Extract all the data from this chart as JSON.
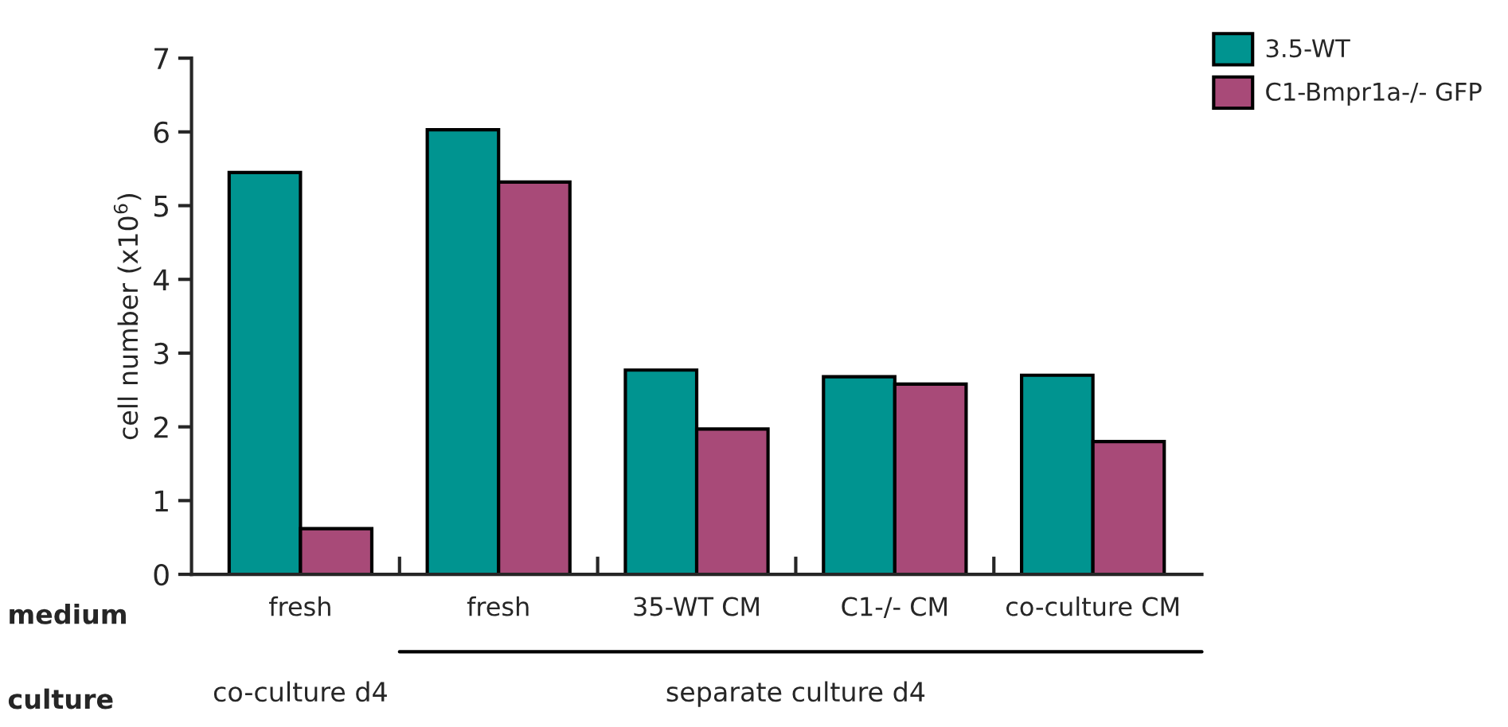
{
  "chart_data": {
    "type": "bar",
    "ylabel": "cell number (x10$^{6}$)",
    "categories": [
      "fresh",
      "fresh",
      "35-WT CM",
      "C1-/- CM",
      "co-culture CM"
    ],
    "series": [
      {
        "name": "3.5-WT",
        "color": "#009490",
        "values": [
          5.45,
          6.03,
          2.77,
          2.68,
          2.7
        ]
      },
      {
        "name": "C1-Bmpr1a-/- GFP",
        "color": "#a84a78",
        "values": [
          0.62,
          5.32,
          1.97,
          2.58,
          1.8
        ]
      }
    ],
    "ylim": [
      0,
      7
    ],
    "yticks": [
      0,
      1,
      2,
      3,
      4,
      5,
      6,
      7
    ],
    "grid": false,
    "legend": "top right",
    "annotations": [
      "medium",
      "culture",
      "co-culture d4",
      "separate culture d4"
    ]
  }
}
